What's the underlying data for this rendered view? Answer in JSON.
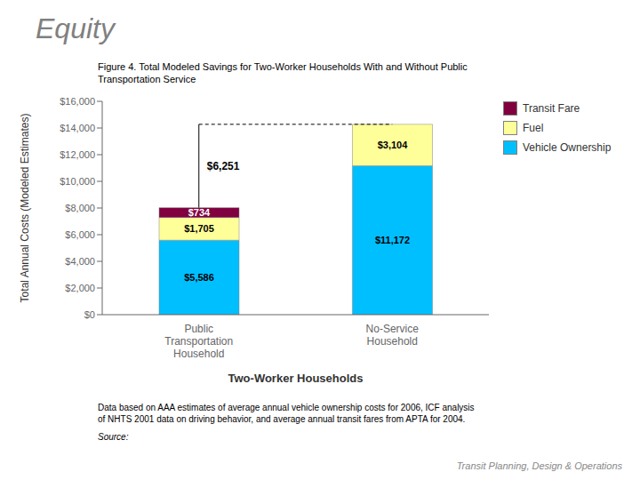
{
  "chart_data": {
    "type": "bar",
    "title": "Equity",
    "subtitle": "Figure 4. Total Modeled Savings for Two-Worker Households With and Without Public\nTransportation Service",
    "xlabel": "Two-Worker Households",
    "ylabel": "Total Annual Costs (Modeled Estimates)",
    "categories": [
      "Public\nTransportation\nHousehold",
      "No-Service\nHousehold"
    ],
    "series": [
      {
        "name": "Vehicle Ownership",
        "color": "#00BFFF",
        "values": [
          5586,
          11172
        ],
        "value_labels": [
          "$5,586",
          "$11,172"
        ]
      },
      {
        "name": "Fuel",
        "color": "#FFFF99",
        "values": [
          1705,
          3104
        ],
        "value_labels": [
          "$1,705",
          "$3,104"
        ]
      },
      {
        "name": "Transit Fare",
        "color": "#800040",
        "values": [
          734,
          0
        ],
        "value_labels": [
          "$734",
          null
        ]
      }
    ],
    "stacked": true,
    "data_labels": true,
    "ylim": [
      0,
      16000
    ],
    "yticks": [
      {
        "value": 0,
        "label": "$0"
      },
      {
        "value": 2000,
        "label": "$2,000"
      },
      {
        "value": 4000,
        "label": "$4,000"
      },
      {
        "value": 6000,
        "label": "$6,000"
      },
      {
        "value": 8000,
        "label": "$8,000"
      },
      {
        "value": 10000,
        "label": "$10,000"
      },
      {
        "value": 12000,
        "label": "$12,000"
      },
      {
        "value": 14000,
        "label": "$14,000"
      },
      {
        "value": 16000,
        "label": "$16,000"
      }
    ],
    "grid": false,
    "legend": "right",
    "annotations": [
      {
        "text": "$6,251",
        "y_from": 8025,
        "y_to": 14276
      }
    ],
    "footnote": "Data based on AAA estimates of average annual vehicle ownership costs for 2006, ICF analysis\nof NHTS 2001 data on driving behavior, and average annual transit fares from APTA for 2004.",
    "source": "Source:",
    "credit": "Transit Planning, Design & Operations"
  }
}
